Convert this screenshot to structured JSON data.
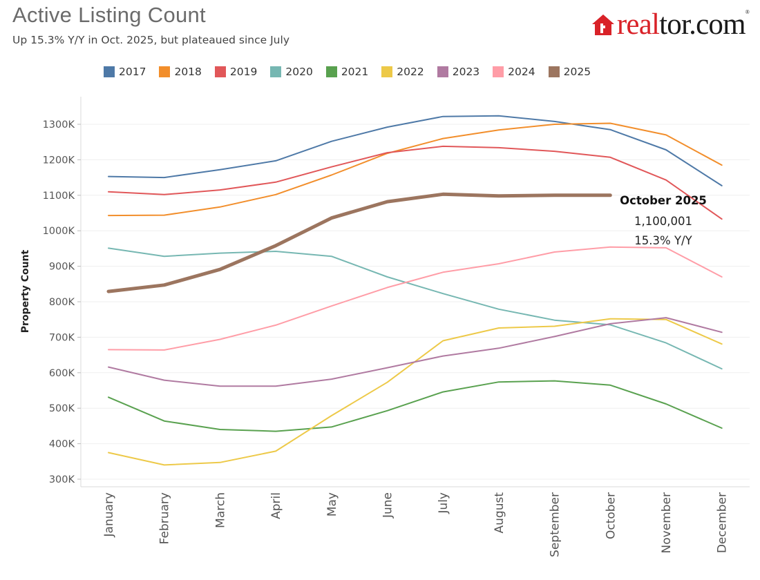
{
  "header": {
    "title": "Active Listing Count",
    "subtitle": "Up 15.3% Y/Y in Oct. 2025, but plateaued since July"
  },
  "logo": {
    "part1": "real",
    "part2": "tor.com",
    "mark": "®",
    "icon": "house-icon",
    "color": "#d92228"
  },
  "chart_data": {
    "type": "line",
    "title": "Active Listing Count",
    "subtitle": "Up 15.3% Y/Y in Oct. 2025, but plateaued since July",
    "xlabel": "",
    "ylabel": "Property Count",
    "ylim": [
      280000,
      1360000
    ],
    "yticks": [
      300000,
      400000,
      500000,
      600000,
      700000,
      800000,
      900000,
      1000000,
      1100000,
      1200000,
      1300000
    ],
    "ytick_labels": [
      "300K",
      "400K",
      "500K",
      "600K",
      "700K",
      "800K",
      "900K",
      "1000K",
      "1100K",
      "1200K",
      "1300K"
    ],
    "categories": [
      "January",
      "February",
      "March",
      "April",
      "May",
      "June",
      "July",
      "August",
      "September",
      "October",
      "November",
      "December"
    ],
    "grid": true,
    "legend_position": "top",
    "series": [
      {
        "name": "2017",
        "color": "#4e79a7",
        "values": [
          1153000,
          1150000,
          1172000,
          1197000,
          1252000,
          1292000,
          1322000,
          1324000,
          1308000,
          1285000,
          1228000,
          1127000
        ]
      },
      {
        "name": "2018",
        "color": "#f28e2b",
        "values": [
          1043000,
          1044000,
          1067000,
          1102000,
          1157000,
          1218000,
          1260000,
          1284000,
          1300000,
          1303000,
          1270000,
          1185000
        ]
      },
      {
        "name": "2019",
        "color": "#e15759",
        "values": [
          1110000,
          1102000,
          1115000,
          1137000,
          1180000,
          1220000,
          1238000,
          1234000,
          1224000,
          1207000,
          1143000,
          1033000
        ]
      },
      {
        "name": "2020",
        "color": "#76b7b2",
        "values": [
          951000,
          928000,
          937000,
          942000,
          928000,
          870000,
          823000,
          779000,
          748000,
          735000,
          684000,
          611000
        ]
      },
      {
        "name": "2021",
        "color": "#59a14f",
        "values": [
          531000,
          464000,
          440000,
          435000,
          447000,
          493000,
          546000,
          574000,
          577000,
          565000,
          512000,
          444000
        ]
      },
      {
        "name": "2022",
        "color": "#edc948",
        "values": [
          375000,
          340000,
          347000,
          379000,
          479000,
          573000,
          690000,
          726000,
          731000,
          752000,
          750000,
          681000
        ]
      },
      {
        "name": "2023",
        "color": "#b07aa1",
        "values": [
          616000,
          579000,
          562000,
          562000,
          582000,
          614000,
          647000,
          669000,
          702000,
          738000,
          755000,
          714000
        ]
      },
      {
        "name": "2024",
        "color": "#ff9da7",
        "values": [
          665000,
          664000,
          694000,
          734000,
          788000,
          840000,
          883000,
          907000,
          940000,
          954000,
          952000,
          870000
        ]
      },
      {
        "name": "2025",
        "color": "#9c755f",
        "values": [
          829000,
          847000,
          891000,
          958000,
          1036000,
          1082000,
          1103000,
          1098000,
          1100000,
          1100001,
          null,
          null
        ]
      }
    ],
    "annotation": {
      "title": "October 2025",
      "value": "1,100,001",
      "change": "15.3% Y/Y"
    }
  }
}
